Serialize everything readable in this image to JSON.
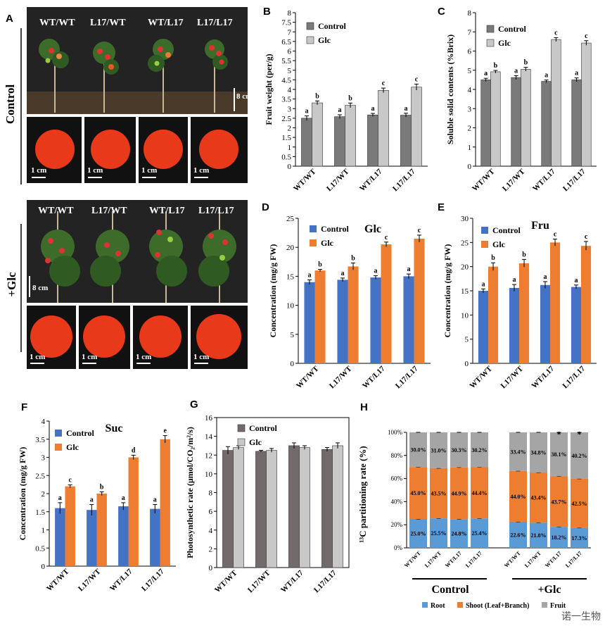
{
  "panel_letters": {
    "A": "A",
    "B": "B",
    "C": "C",
    "D": "D",
    "E": "E",
    "F": "F",
    "G": "G",
    "H": "H"
  },
  "photos": {
    "genotypes": [
      "WT/WT",
      "L17/WT",
      "WT/L17",
      "L17/L17"
    ],
    "control_label": "Control",
    "glc_label": "+Glc",
    "scale_plant": "8 cm",
    "scale_fruit": "1 cm"
  },
  "colors": {
    "dark_gray": "#7a7a7a",
    "light_gray": "#c8c8c8",
    "blue": "#4472c4",
    "orange": "#ed7d31",
    "h_root": "#5b9bd5",
    "h_shoot": "#ed7d31",
    "h_fruit": "#a5a5a5",
    "g_dark": "#736b6b"
  },
  "chart_data": [
    {
      "id": "B",
      "type": "bar",
      "categories": [
        "WT/WT",
        "L17/WT",
        "WT/L17",
        "L17/L17"
      ],
      "series": [
        {
          "name": "Control",
          "values": [
            2.5,
            2.58,
            2.67,
            2.66
          ],
          "errors": [
            0.12,
            0.1,
            0.08,
            0.1
          ],
          "letters": [
            "a",
            "a",
            "a",
            "a"
          ]
        },
        {
          "name": "Glc",
          "values": [
            3.3,
            3.17,
            3.95,
            4.12
          ],
          "errors": [
            0.1,
            0.12,
            0.12,
            0.16
          ],
          "letters": [
            "b",
            "b",
            "c",
            "c"
          ]
        }
      ],
      "ylabel": "Fruit weight   (per/g)",
      "ylim": [
        0,
        8
      ],
      "yticks": [
        0,
        0.5,
        1,
        1.5,
        2,
        2.5,
        3,
        3.5,
        4,
        4.5,
        5,
        5.5,
        6,
        6.5,
        7,
        7.5,
        8
      ],
      "legend": "top-left"
    },
    {
      "id": "C",
      "type": "bar",
      "categories": [
        "WT/WT",
        "L17/WT",
        "WT/L17",
        "L17/L17"
      ],
      "series": [
        {
          "name": "Control",
          "values": [
            4.5,
            4.62,
            4.42,
            4.5
          ],
          "errors": [
            0.08,
            0.1,
            0.07,
            0.1
          ],
          "letters": [
            "a",
            "a",
            "a",
            "a"
          ]
        },
        {
          "name": "Glc",
          "values": [
            4.92,
            5.05,
            6.6,
            6.42
          ],
          "errors": [
            0.07,
            0.1,
            0.1,
            0.12
          ],
          "letters": [
            "b",
            "b",
            "c",
            "c"
          ]
        }
      ],
      "ylabel": "Soluble solid contents (%Brix)",
      "ylim": [
        0,
        8
      ],
      "yticks": [
        0,
        1,
        2,
        3,
        4,
        5,
        6,
        7,
        8
      ],
      "legend": "top-left"
    },
    {
      "id": "D",
      "type": "bar",
      "title": "Glc",
      "categories": [
        "WT/WT",
        "L17/WT",
        "WT/L17",
        "L17/L17"
      ],
      "series": [
        {
          "name": "Control",
          "values": [
            14,
            14.4,
            14.8,
            15
          ],
          "errors": [
            0.4,
            0.3,
            0.3,
            0.4
          ],
          "letters": [
            "a",
            "a",
            "a",
            "a"
          ]
        },
        {
          "name": "Glc",
          "values": [
            16,
            16.7,
            20.5,
            21.5
          ],
          "errors": [
            0.2,
            0.6,
            0.4,
            0.6
          ],
          "letters": [
            "b",
            "b",
            "c",
            "c"
          ]
        }
      ],
      "ylabel": "Concentration (mg/g FW)",
      "ylim": [
        0,
        25
      ],
      "yticks": [
        0,
        5,
        10,
        15,
        20,
        25
      ],
      "legend": "top-left"
    },
    {
      "id": "E",
      "type": "bar",
      "title": "Fru",
      "categories": [
        "WT/WT",
        "L17/WT",
        "WT/L17",
        "L17/L17"
      ],
      "series": [
        {
          "name": "Control",
          "values": [
            15,
            15.6,
            16.2,
            15.8
          ],
          "errors": [
            0.4,
            0.7,
            0.7,
            0.4
          ],
          "letters": [
            "a",
            "a",
            "a",
            "a"
          ]
        },
        {
          "name": "Glc",
          "values": [
            20,
            20.7,
            25,
            24.3
          ],
          "errors": [
            0.8,
            0.8,
            0.7,
            0.9
          ],
          "letters": [
            "b",
            "b",
            "c",
            "c"
          ]
        }
      ],
      "ylabel": "Concentration (mg/g FW)",
      "ylim": [
        0,
        30
      ],
      "yticks": [
        0,
        5,
        10,
        15,
        20,
        25,
        30
      ],
      "legend": "top-left"
    },
    {
      "id": "F",
      "type": "bar",
      "title": "Suc",
      "categories": [
        "WT/WT",
        "L17/WT",
        "WT/L17",
        "L17/L17"
      ],
      "series": [
        {
          "name": "Control",
          "values": [
            1.6,
            1.55,
            1.65,
            1.58
          ],
          "errors": [
            0.15,
            0.15,
            0.1,
            0.12
          ],
          "letters": [
            "a",
            "a",
            "a",
            "a"
          ]
        },
        {
          "name": "Glc",
          "values": [
            2.2,
            2.0,
            3.0,
            3.5
          ],
          "errors": [
            0.04,
            0.05,
            0.06,
            0.1
          ],
          "letters": [
            "c",
            "b",
            "d",
            "e"
          ]
        }
      ],
      "ylabel": "Concentration (mg/g FW)",
      "ylim": [
        0,
        4
      ],
      "yticks": [
        0,
        0.5,
        1,
        1.5,
        2,
        2.5,
        3,
        3.5,
        4
      ],
      "legend": "top-left"
    },
    {
      "id": "G",
      "type": "bar",
      "categories": [
        "WT/WT",
        "L17/WT",
        "WT/L17",
        "L17/L17"
      ],
      "series": [
        {
          "name": "Control",
          "values": [
            12.5,
            12.4,
            13.0,
            12.6
          ],
          "errors": [
            0.4,
            0.1,
            0.3,
            0.2
          ],
          "letters": [
            "",
            "",
            "",
            ""
          ]
        },
        {
          "name": "Glc",
          "values": [
            12.8,
            12.5,
            12.8,
            13.0
          ],
          "errors": [
            0.2,
            0.2,
            0.2,
            0.3
          ],
          "letters": [
            "",
            "",
            "",
            ""
          ]
        }
      ],
      "ylabel": "Photosynthetic rate (μmol/CO₂/m²/s)",
      "ylim": [
        0,
        16
      ],
      "yticks": [
        0,
        2,
        4,
        6,
        8,
        10,
        12,
        14,
        16
      ],
      "legend": "top-center"
    },
    {
      "id": "H",
      "type": "bar",
      "stacked": "percent",
      "categories": [
        "WT/WT",
        "L17/WT",
        "WT/L17",
        "L17/L17",
        "WT/WT",
        "L17/WT",
        "WT/L17",
        "L17/L17"
      ],
      "groups": [
        "Control",
        "+Glc"
      ],
      "series": [
        {
          "name": "Root",
          "values": [
            25.0,
            25.5,
            24.8,
            25.4,
            22.6,
            21.8,
            18.2,
            17.3
          ],
          "labels": [
            "25.0%",
            "25.5%",
            "24.8%",
            "25.4%",
            "22.6%",
            "21.8%",
            "18.2%",
            "17.3%"
          ]
        },
        {
          "name": "Shoot (Leaf+Branch)",
          "values": [
            45.0,
            43.5,
            44.9,
            44.4,
            44.0,
            43.4,
            43.7,
            42.5
          ],
          "labels": [
            "45.0%",
            "43.5%",
            "44.9%",
            "44.4%",
            "44.0%",
            "43.4%",
            "43.7%",
            "42.5%"
          ]
        },
        {
          "name": "Fruit",
          "values": [
            30.0,
            31.0,
            30.3,
            30.2,
            33.4,
            34.8,
            38.1,
            40.2
          ],
          "labels": [
            "30.0%",
            "31.0%",
            "30.3%",
            "30.2%",
            "33.4%",
            "34.8%",
            "38.1%",
            "40.2%"
          ]
        }
      ],
      "asterisks": [
        "*",
        "*"
      ],
      "ylabel": "¹³C partitioning rate (%)",
      "ylim": [
        0,
        100
      ],
      "yticks": [
        "0%",
        "20%",
        "40%",
        "60%",
        "80%",
        "100%"
      ],
      "legend": "bottom"
    }
  ],
  "watermark": "诺一生物"
}
